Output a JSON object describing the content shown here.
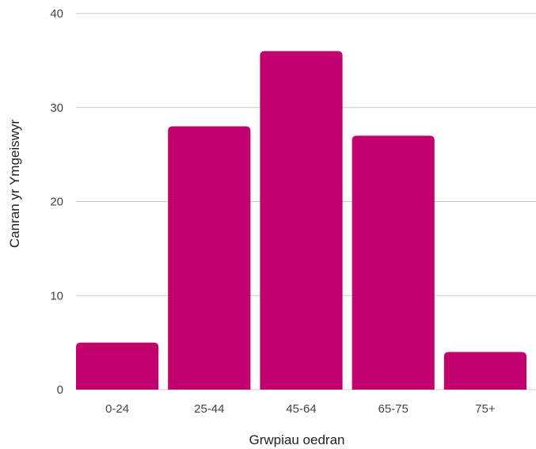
{
  "chart_data": {
    "type": "bar",
    "categories": [
      "0-24",
      "25-44",
      "45-64",
      "65-75",
      "75+"
    ],
    "values": [
      5,
      28,
      36,
      27,
      4
    ],
    "xlabel": "Grwpiau oedran",
    "ylabel": "Canran yr Ymgeiswyr",
    "ylim": [
      0,
      40
    ],
    "yticks": [
      0,
      10,
      20,
      30,
      40
    ],
    "grid": true,
    "bar_color": "#C2006E",
    "grid_color": "#cccccc"
  }
}
